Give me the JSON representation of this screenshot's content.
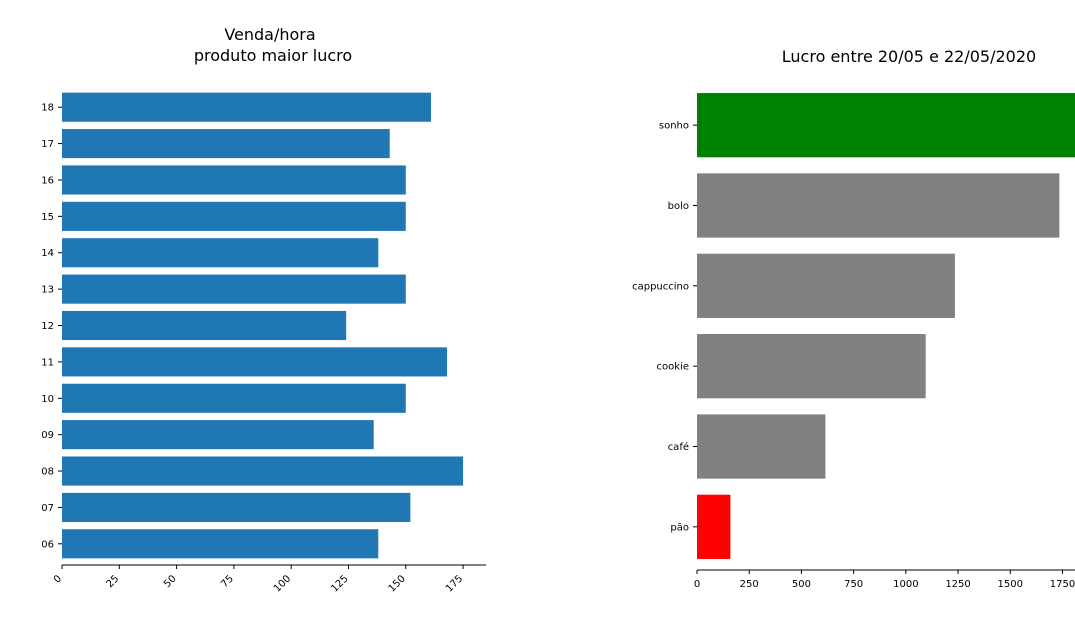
{
  "chart_data": [
    {
      "type": "bar",
      "orientation": "horizontal",
      "title_lines": [
        "Venda/hora",
        "produto maior lucro"
      ],
      "categories": [
        "18",
        "17",
        "16",
        "15",
        "14",
        "13",
        "12",
        "11",
        "10",
        "09",
        "08",
        "07",
        "06"
      ],
      "values": [
        161,
        143,
        150,
        150,
        138,
        150,
        124,
        168,
        150,
        136,
        175,
        152,
        138
      ],
      "xlim": [
        0,
        185
      ],
      "xticks": [
        0,
        25,
        50,
        75,
        100,
        125,
        150,
        175
      ],
      "xtick_labels": [
        "0",
        "25",
        "50",
        "75",
        "100",
        "125",
        "150",
        "175"
      ],
      "bar_color": "#1f77b4",
      "grid": false
    },
    {
      "type": "bar",
      "orientation": "horizontal",
      "title": "Lucro entre 20/05 e 22/05/2020",
      "categories": [
        "sonho",
        "bolo",
        "cappuccino",
        "cookie",
        "café",
        "pão"
      ],
      "values": [
        1810,
        1735,
        1235,
        1095,
        615,
        160
      ],
      "colors": [
        "#008000",
        "#808080",
        "#808080",
        "#808080",
        "#808080",
        "#ff0000"
      ],
      "xlim": [
        0,
        1810
      ],
      "xticks": [
        0,
        250,
        500,
        750,
        1000,
        1250,
        1500,
        1750
      ],
      "xtick_labels": [
        "0",
        "250",
        "500",
        "750",
        "1000",
        "1250",
        "1500",
        "1750"
      ],
      "grid": false
    }
  ]
}
